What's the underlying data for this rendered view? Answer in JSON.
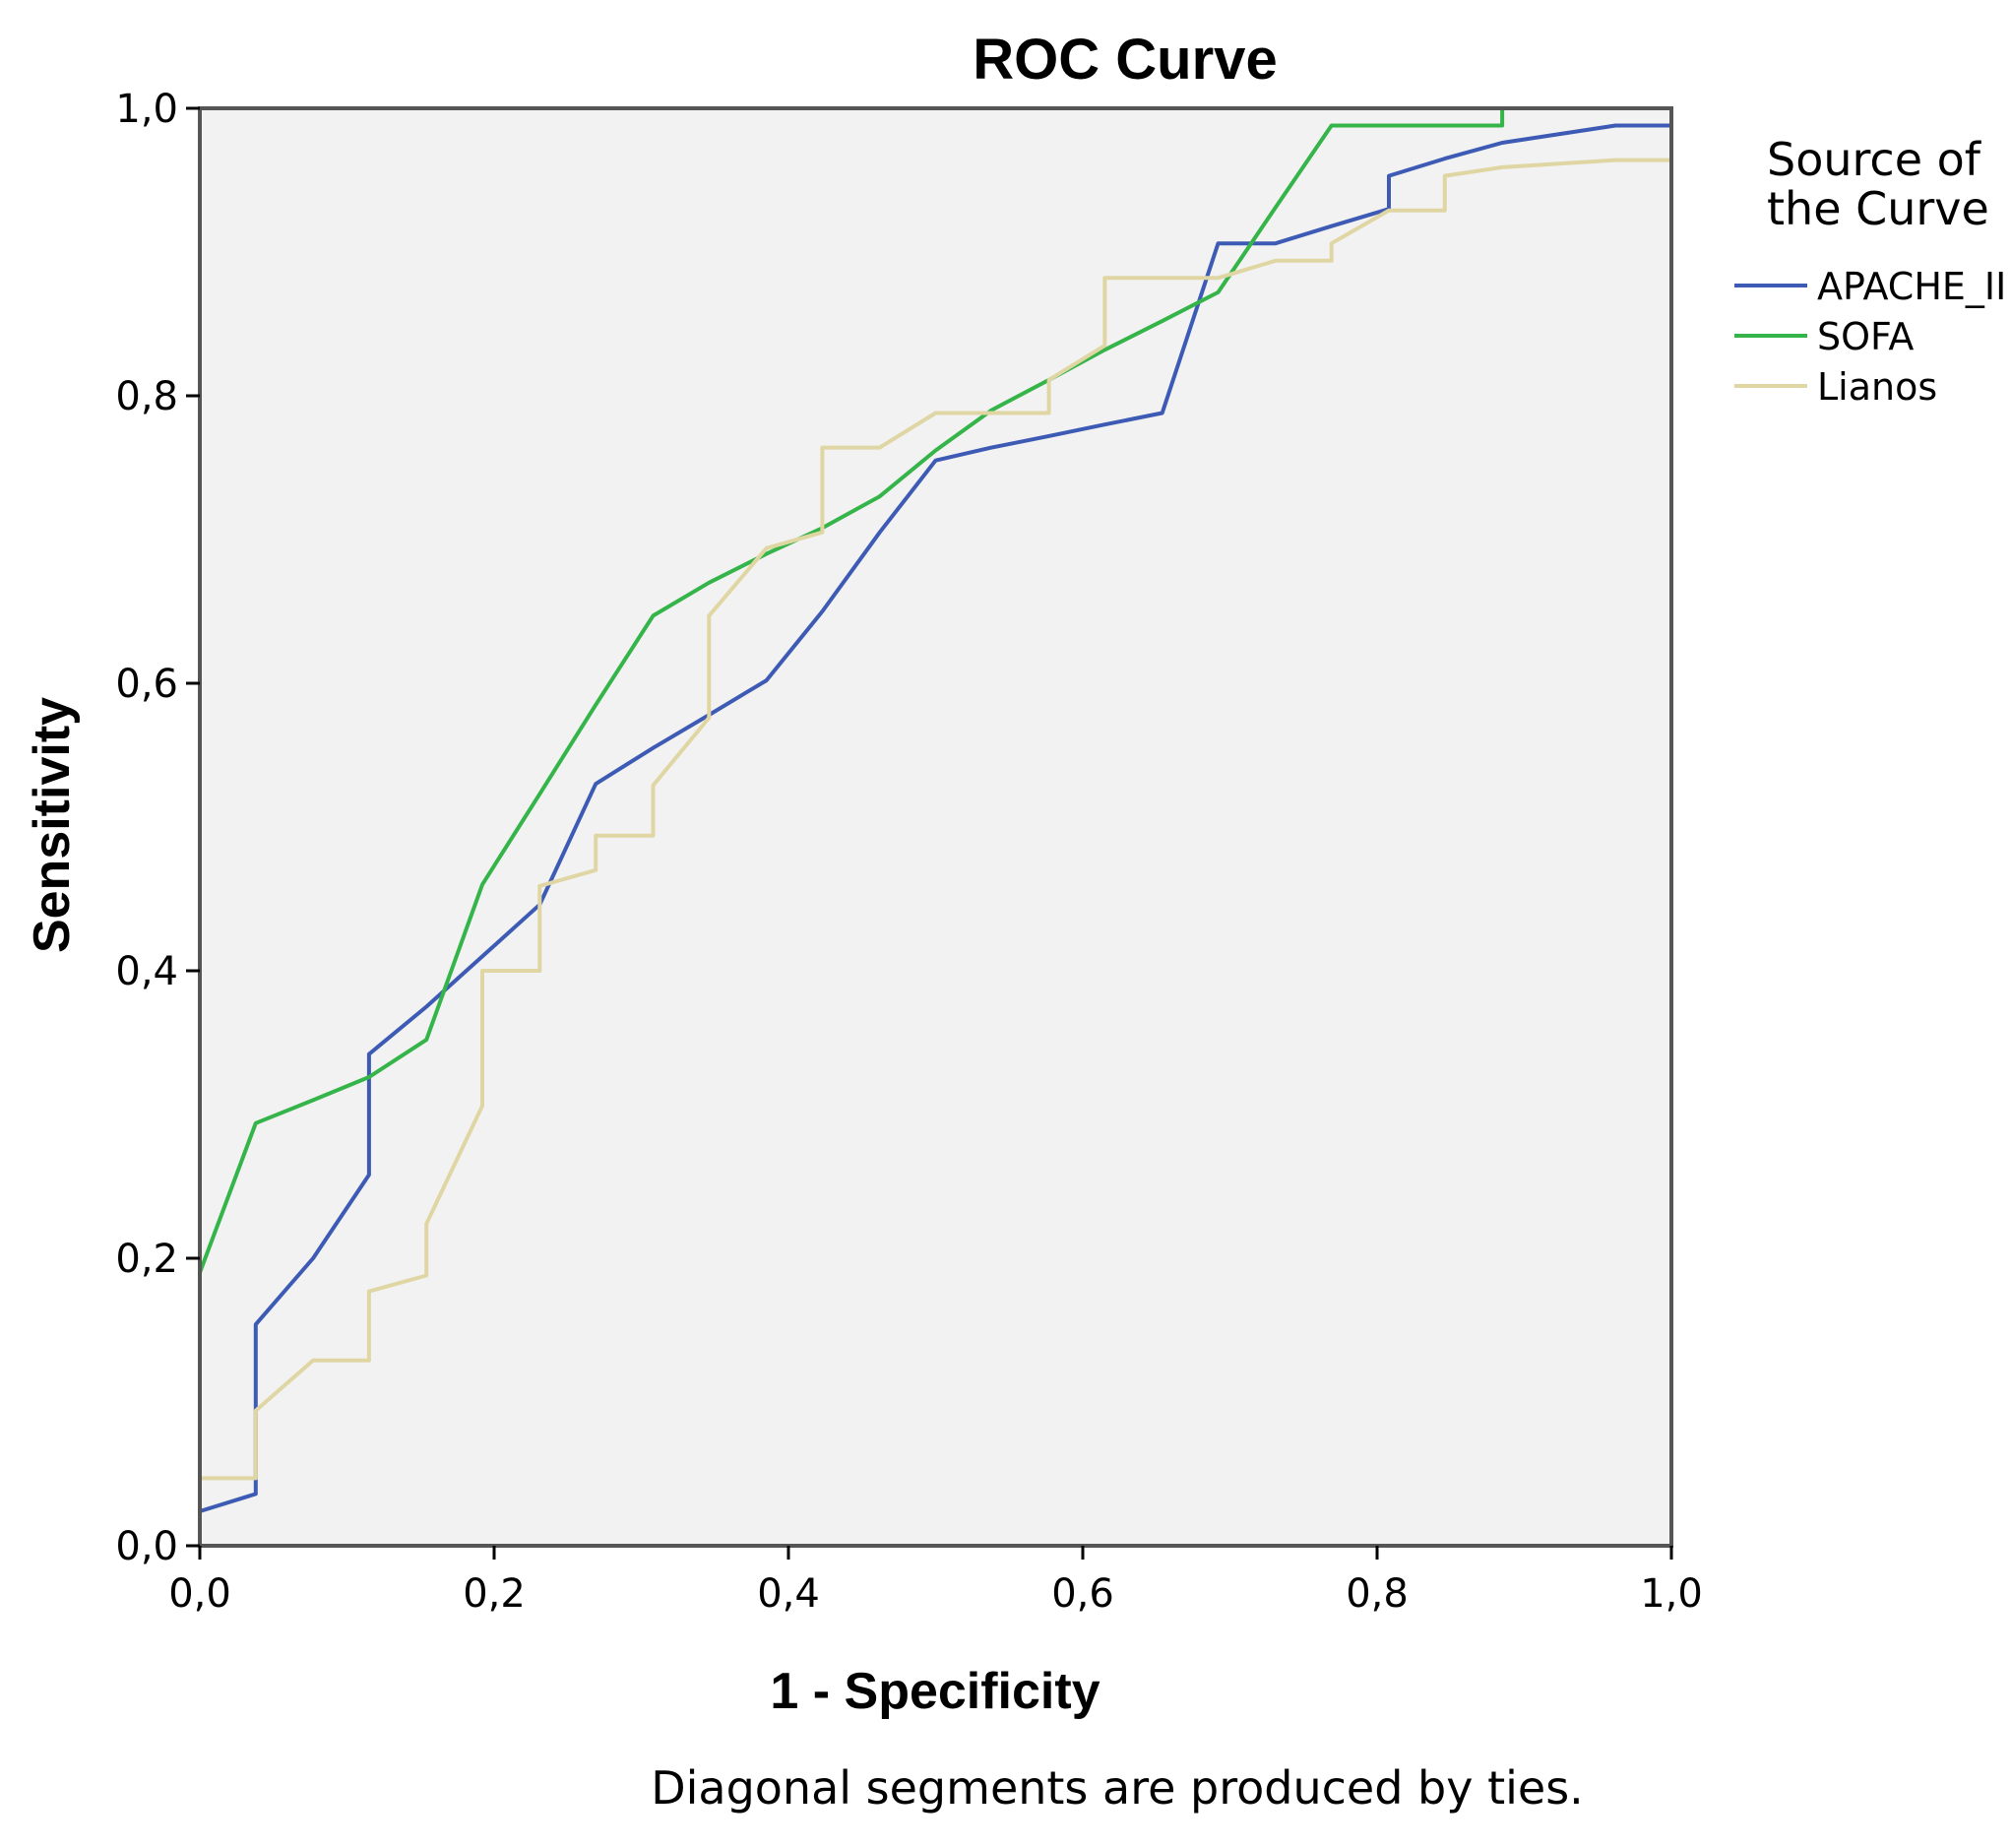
{
  "chart_data": {
    "type": "line",
    "title": "ROC Curve",
    "xlabel": "1 - Specificity",
    "ylabel": "Sensitivity",
    "xlim": [
      0,
      1
    ],
    "ylim": [
      0,
      1
    ],
    "xticks": [
      0,
      0.2,
      0.4,
      0.6,
      0.8,
      1.0
    ],
    "yticks": [
      0,
      0.2,
      0.4,
      0.6,
      0.8,
      1.0
    ],
    "xtick_labels": [
      "0,0",
      "0,2",
      "0,4",
      "0,6",
      "0,8",
      "1,0"
    ],
    "ytick_labels": [
      "0,0",
      "0,2",
      "0,4",
      "0,6",
      "0,8",
      "1,0"
    ],
    "grid": false,
    "legend": {
      "title_lines": [
        "Source of",
        "the Curve"
      ],
      "position": "right"
    },
    "footnote": "Diagonal segments are produced by ties.",
    "plot_background": "#f2f2f2",
    "series": [
      {
        "name": "APACHE_II",
        "legend_label": "APACHE_II",
        "color": "#3d5ab5",
        "points": [
          [
            0,
            0
          ],
          [
            0,
            0.024
          ],
          [
            0.038,
            0.036
          ],
          [
            0.038,
            0.154
          ],
          [
            0.077,
            0.2
          ],
          [
            0.115,
            0.258
          ],
          [
            0.115,
            0.342
          ],
          [
            0.154,
            0.375
          ],
          [
            0.192,
            0.41
          ],
          [
            0.231,
            0.446
          ],
          [
            0.269,
            0.53
          ],
          [
            0.308,
            0.555
          ],
          [
            0.346,
            0.578
          ],
          [
            0.385,
            0.602
          ],
          [
            0.423,
            0.65
          ],
          [
            0.462,
            0.705
          ],
          [
            0.5,
            0.755
          ],
          [
            0.538,
            0.764
          ],
          [
            0.577,
            0.772
          ],
          [
            0.615,
            0.78
          ],
          [
            0.654,
            0.788
          ],
          [
            0.692,
            0.906
          ],
          [
            0.731,
            0.906
          ],
          [
            0.769,
            0.918
          ],
          [
            0.808,
            0.93
          ],
          [
            0.808,
            0.953
          ],
          [
            0.846,
            0.965
          ],
          [
            0.885,
            0.976
          ],
          [
            0.962,
            0.988
          ],
          [
            1,
            0.988
          ],
          [
            1,
            1
          ]
        ]
      },
      {
        "name": "SOFA",
        "legend_label": "SOFA",
        "color": "#35b44a",
        "points": [
          [
            0,
            0
          ],
          [
            0,
            0.19
          ],
          [
            0.038,
            0.294
          ],
          [
            0.077,
            0.31
          ],
          [
            0.115,
            0.326
          ],
          [
            0.154,
            0.352
          ],
          [
            0.192,
            0.46
          ],
          [
            0.231,
            0.523
          ],
          [
            0.269,
            0.585
          ],
          [
            0.308,
            0.647
          ],
          [
            0.346,
            0.67
          ],
          [
            0.385,
            0.69
          ],
          [
            0.423,
            0.708
          ],
          [
            0.462,
            0.73
          ],
          [
            0.5,
            0.762
          ],
          [
            0.538,
            0.79
          ],
          [
            0.577,
            0.811
          ],
          [
            0.615,
            0.832
          ],
          [
            0.654,
            0.852
          ],
          [
            0.692,
            0.872
          ],
          [
            0.731,
            0.931
          ],
          [
            0.769,
            0.988
          ],
          [
            0.885,
            0.988
          ],
          [
            0.885,
            1
          ],
          [
            1,
            1
          ]
        ]
      },
      {
        "name": "Lianos",
        "legend_label": "Lianos",
        "color": "#e0d6a4",
        "points": [
          [
            0,
            0
          ],
          [
            0,
            0.047
          ],
          [
            0.038,
            0.047
          ],
          [
            0.038,
            0.094
          ],
          [
            0.077,
            0.129
          ],
          [
            0.115,
            0.129
          ],
          [
            0.115,
            0.177
          ],
          [
            0.154,
            0.188
          ],
          [
            0.154,
            0.224
          ],
          [
            0.192,
            0.306
          ],
          [
            0.192,
            0.4
          ],
          [
            0.231,
            0.4
          ],
          [
            0.231,
            0.459
          ],
          [
            0.269,
            0.47
          ],
          [
            0.269,
            0.494
          ],
          [
            0.308,
            0.494
          ],
          [
            0.308,
            0.529
          ],
          [
            0.346,
            0.576
          ],
          [
            0.346,
            0.647
          ],
          [
            0.385,
            0.694
          ],
          [
            0.423,
            0.705
          ],
          [
            0.423,
            0.764
          ],
          [
            0.462,
            0.764
          ],
          [
            0.5,
            0.788
          ],
          [
            0.538,
            0.788
          ],
          [
            0.577,
            0.788
          ],
          [
            0.577,
            0.811
          ],
          [
            0.615,
            0.835
          ],
          [
            0.615,
            0.882
          ],
          [
            0.654,
            0.882
          ],
          [
            0.692,
            0.882
          ],
          [
            0.731,
            0.894
          ],
          [
            0.769,
            0.894
          ],
          [
            0.769,
            0.906
          ],
          [
            0.808,
            0.929
          ],
          [
            0.846,
            0.929
          ],
          [
            0.846,
            0.953
          ],
          [
            0.885,
            0.959
          ],
          [
            0.962,
            0.964
          ],
          [
            1,
            0.964
          ],
          [
            1,
            1
          ]
        ]
      }
    ]
  }
}
